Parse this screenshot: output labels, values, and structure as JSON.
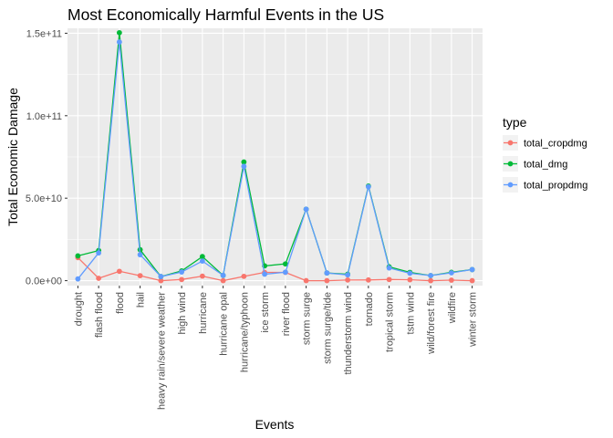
{
  "chart_data": {
    "type": "line",
    "title": "Most Economically Harmful Events in the US",
    "xlabel": "Events",
    "ylabel": "Total Economic Damage",
    "categories": [
      "drought",
      "flash flood",
      "flood",
      "hail",
      "heavy rain/severe weather",
      "high wind",
      "hurricane",
      "hurricane opal",
      "hurricane/typhoon",
      "ice storm",
      "river flood",
      "storm surge",
      "storm surge/tide",
      "thunderstorm wind",
      "tornado",
      "tropical storm",
      "tstm wind",
      "wild/forest fire",
      "wildfire",
      "winter storm"
    ],
    "yticks": [
      {
        "value": 0,
        "label": "0.0e+00"
      },
      {
        "value": 50000000000,
        "label": "5.0e+10"
      },
      {
        "value": 100000000000,
        "label": "1.0e+11"
      },
      {
        "value": 150000000000,
        "label": "1.5e+11"
      }
    ],
    "ylim": [
      -3000000000,
      153000000000
    ],
    "grid": true,
    "legend": {
      "title": "type",
      "placement": "right"
    },
    "series": [
      {
        "name": "total_cropdmg",
        "color": "#F8766D",
        "values": [
          13970000000,
          1420000000,
          5660000000,
          3030000000,
          0,
          680000000,
          2740000000,
          0,
          2610000000,
          5020000000,
          5030000000,
          0,
          0,
          400000000,
          420000000,
          680000000,
          550000000,
          0,
          300000000,
          0
        ]
      },
      {
        "name": "total_dmg",
        "color": "#00BA38",
        "values": [
          15020000000,
          18240000000,
          150320000000,
          18760000000,
          2500000000,
          5910000000,
          14610000000,
          3200000000,
          71910000000,
          8970000000,
          10150000000,
          43320000000,
          4640000000,
          3900000000,
          57350000000,
          8380000000,
          5040000000,
          3100000000,
          5060000000,
          6720000000
        ]
      },
      {
        "name": "total_propdmg",
        "color": "#619CFF",
        "values": [
          1050000000,
          16820000000,
          144660000000,
          15730000000,
          2500000000,
          5270000000,
          11870000000,
          3200000000,
          69310000000,
          3940000000,
          5120000000,
          43320000000,
          4640000000,
          3500000000,
          56940000000,
          7700000000,
          4490000000,
          3100000000,
          4760000000,
          6720000000
        ]
      }
    ]
  }
}
